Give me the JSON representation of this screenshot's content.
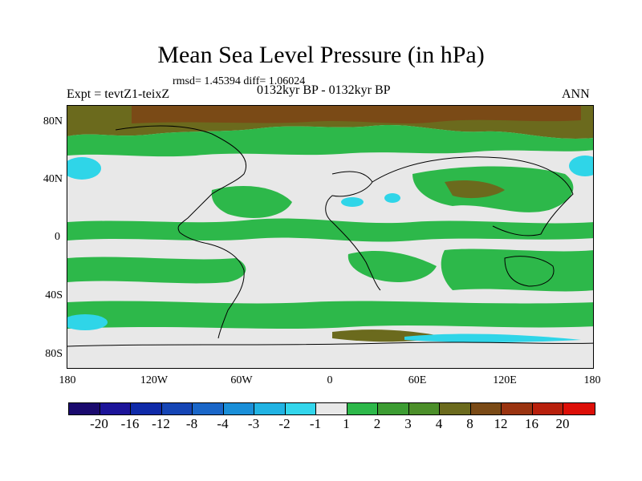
{
  "title": "Mean Sea Level Pressure (in hPa)",
  "stats": "rmsd= 1.45394 diff= 1.06024",
  "left_label": "Expt = tevtZ1-teixZ",
  "center_label": "0132kyr BP - 0132kyr BP",
  "right_label": "ANN",
  "colors": {
    "background": "#e8e8e8",
    "land_outline": "#000000",
    "green": "#2db84a",
    "dark_green": "#4c8f2a",
    "olive": "#6b6a1d",
    "brown": "#7a4a16",
    "cyan": "#2fd5e8"
  },
  "chart_data": {
    "type": "heatmap",
    "map": "global filled contour of mean sea level pressure difference",
    "lat_ticks": [
      "80N",
      "40N",
      "0",
      "40S",
      "80S"
    ],
    "lon_ticks": [
      "180",
      "120W",
      "60W",
      "0",
      "60E",
      "120E",
      "180"
    ],
    "lat_range": [
      -90,
      90
    ],
    "lon_range": [
      -180,
      180
    ],
    "colorbar": {
      "labels": [
        "-20",
        "-16",
        "-12",
        "-8",
        "-4",
        "-3",
        "-2",
        "-1",
        "1",
        "2",
        "3",
        "4",
        "8",
        "12",
        "16",
        "20"
      ],
      "colors": [
        "#1a0a6e",
        "#1c1499",
        "#0f2aa8",
        "#1545b5",
        "#1a66c8",
        "#1a8fd8",
        "#21b3e3",
        "#33d6ec",
        "#e8e8e8",
        "#2db84a",
        "#3c9c32",
        "#4c8f2a",
        "#6b6a1d",
        "#7a4a16",
        "#9a3310",
        "#b8200c",
        "#dd0f08"
      ]
    },
    "regions": [
      {
        "name": "arctic high",
        "level": "8",
        "lon": [
          -180,
          180
        ],
        "lat": [
          68,
          90
        ]
      },
      {
        "name": "north atlantic cyan",
        "level": "-1",
        "lon": [
          -70,
          -45
        ],
        "lat": [
          20,
          30
        ]
      },
      {
        "name": "arabia cyan",
        "level": "-1",
        "lon": [
          35,
          45
        ],
        "lat": [
          20,
          28
        ]
      },
      {
        "name": "north pacific cyan west",
        "level": "-2",
        "lon": [
          -180,
          -160
        ],
        "lat": [
          35,
          50
        ]
      },
      {
        "name": "north pacific cyan east",
        "level": "-2",
        "lon": [
          165,
          180
        ],
        "lat": [
          35,
          50
        ]
      },
      {
        "name": "south pacific cyan",
        "level": "-1",
        "lon": [
          -180,
          -165
        ],
        "lat": [
          -65,
          -55
        ]
      },
      {
        "name": "antarctic coast",
        "level": "-1",
        "lon": [
          60,
          160
        ],
        "lat": [
          -70,
          -65
        ]
      }
    ]
  }
}
